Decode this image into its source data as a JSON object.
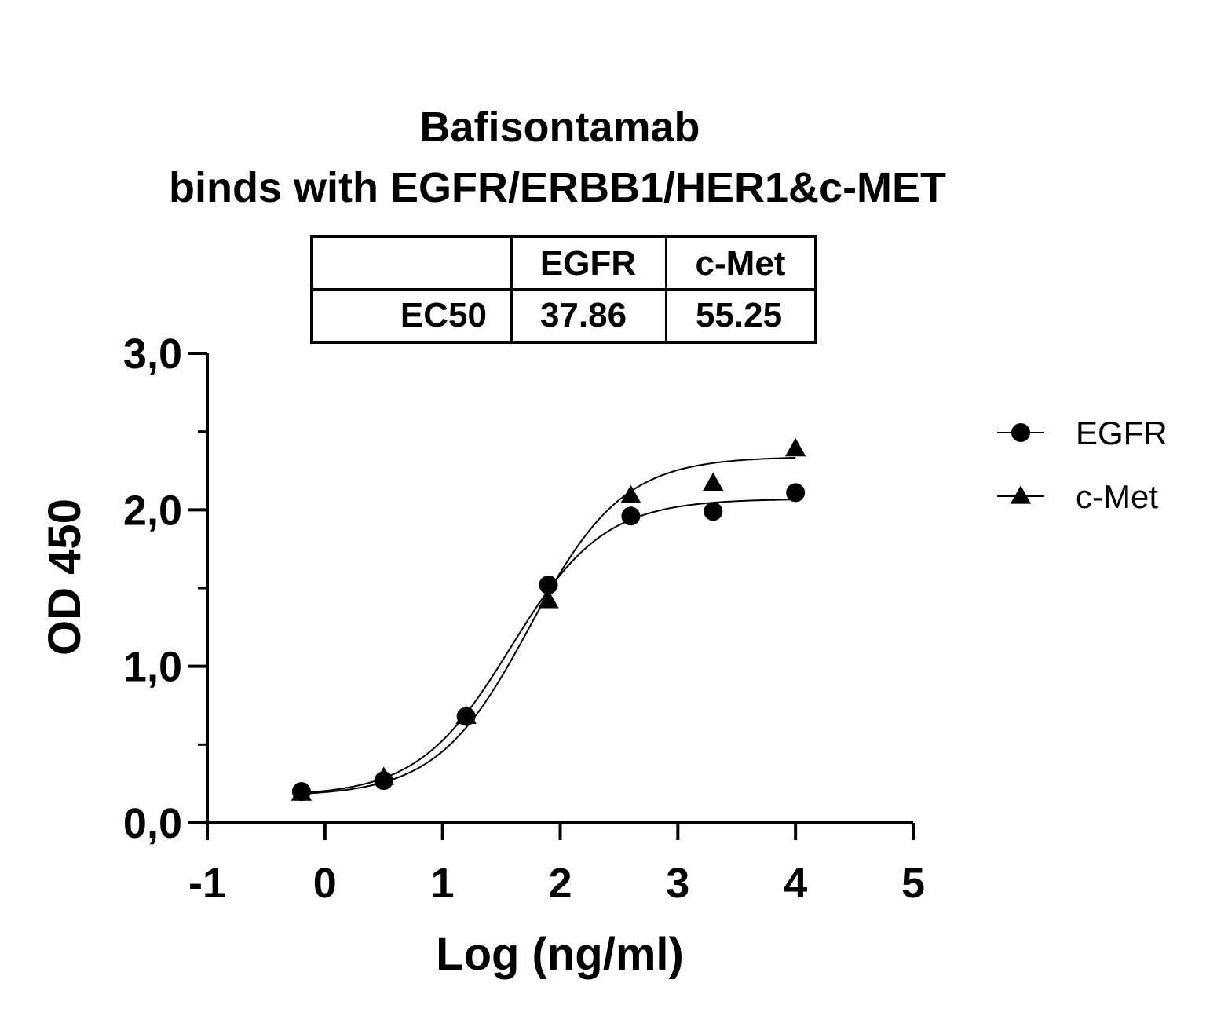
{
  "chart_data": {
    "type": "scatter",
    "title": "Bafisontamab",
    "subtitle": "binds with EGFR/ERBB1/HER1&c-MET",
    "xlabel": "Log (ng/ml)",
    "ylabel": "OD 450",
    "xlim": [
      -1,
      5
    ],
    "ylim": [
      0,
      3
    ],
    "xticks": [
      "-1",
      "0",
      "1",
      "2",
      "3",
      "4",
      "5"
    ],
    "yticks": [
      "0,0",
      "1,0",
      "2,0",
      "3,0"
    ],
    "grid": false,
    "legend_position": "right",
    "series": [
      {
        "name": "EGFR",
        "marker": "circle",
        "color": "#000000",
        "x": [
          -0.2,
          0.5,
          1.2,
          1.9,
          2.6,
          3.3,
          4.0
        ],
        "y": [
          0.2,
          0.27,
          0.68,
          1.52,
          1.96,
          1.99,
          2.11
        ]
      },
      {
        "name": "c-Met",
        "marker": "triangle",
        "color": "#000000",
        "x": [
          -0.2,
          0.5,
          1.2,
          1.9,
          2.6,
          3.3,
          4.0
        ],
        "y": [
          0.19,
          0.29,
          0.68,
          1.42,
          2.09,
          2.17,
          2.39
        ]
      }
    ],
    "table": {
      "headers": [
        "",
        "EGFR",
        "c-Met"
      ],
      "rows": [
        [
          "EC50",
          "37.86",
          "55.25"
        ]
      ]
    }
  }
}
